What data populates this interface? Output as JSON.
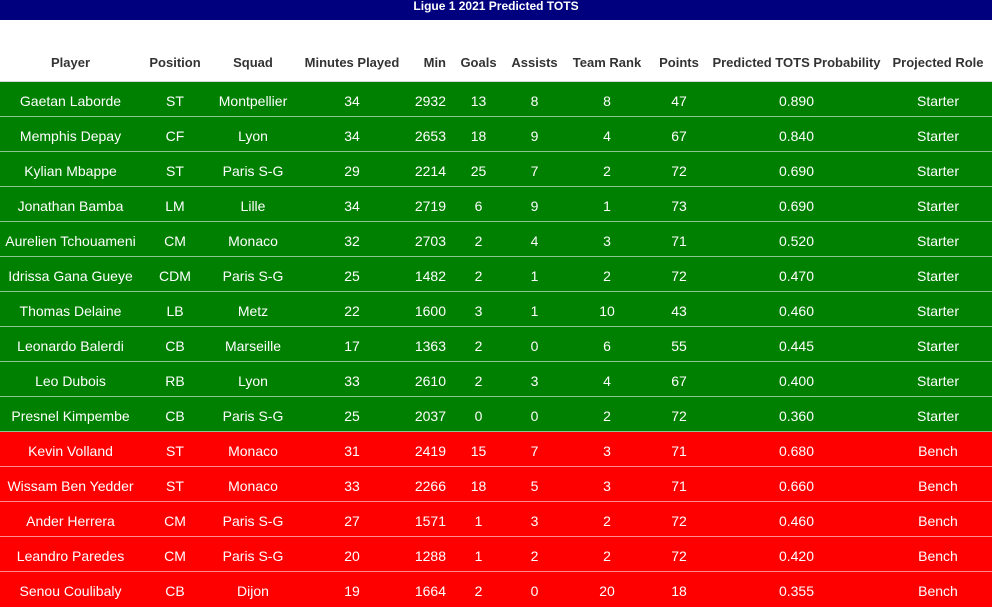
{
  "chart_data": {
    "type": "table",
    "title": "Ligue 1 2021 Predicted TOTS",
    "columns": [
      "Player",
      "Position",
      "Squad",
      "Minutes Played",
      "Min",
      "Goals",
      "Assists",
      "Team Rank",
      "Points",
      "Predicted TOTS Probability",
      "Projected Role"
    ],
    "role_colors": {
      "Starter": "#008000",
      "Bench": "#ff0000"
    },
    "rows": [
      [
        "Gaetan Laborde",
        "ST",
        "Montpellier",
        34,
        2932,
        13,
        8,
        8,
        47,
        "0.890",
        "Starter"
      ],
      [
        "Memphis Depay",
        "CF",
        "Lyon",
        34,
        2653,
        18,
        9,
        4,
        67,
        "0.840",
        "Starter"
      ],
      [
        "Kylian Mbappe",
        "ST",
        "Paris S-G",
        29,
        2214,
        25,
        7,
        2,
        72,
        "0.690",
        "Starter"
      ],
      [
        "Jonathan Bamba",
        "LM",
        "Lille",
        34,
        2719,
        6,
        9,
        1,
        73,
        "0.690",
        "Starter"
      ],
      [
        "Aurelien Tchouameni",
        "CM",
        "Monaco",
        32,
        2703,
        2,
        4,
        3,
        71,
        "0.520",
        "Starter"
      ],
      [
        "Idrissa Gana Gueye",
        "CDM",
        "Paris S-G",
        25,
        1482,
        2,
        1,
        2,
        72,
        "0.470",
        "Starter"
      ],
      [
        "Thomas Delaine",
        "LB",
        "Metz",
        22,
        1600,
        3,
        1,
        10,
        43,
        "0.460",
        "Starter"
      ],
      [
        "Leonardo Balerdi",
        "CB",
        "Marseille",
        17,
        1363,
        2,
        0,
        6,
        55,
        "0.445",
        "Starter"
      ],
      [
        "Leo Dubois",
        "RB",
        "Lyon",
        33,
        2610,
        2,
        3,
        4,
        67,
        "0.400",
        "Starter"
      ],
      [
        "Presnel Kimpembe",
        "CB",
        "Paris S-G",
        25,
        2037,
        0,
        0,
        2,
        72,
        "0.360",
        "Starter"
      ],
      [
        "Kevin Volland",
        "ST",
        "Monaco",
        31,
        2419,
        15,
        7,
        3,
        71,
        "0.680",
        "Bench"
      ],
      [
        "Wissam Ben Yedder",
        "ST",
        "Monaco",
        33,
        2266,
        18,
        5,
        3,
        71,
        "0.660",
        "Bench"
      ],
      [
        "Ander Herrera",
        "CM",
        "Paris S-G",
        27,
        1571,
        1,
        3,
        2,
        72,
        "0.460",
        "Bench"
      ],
      [
        "Leandro Paredes",
        "CM",
        "Paris S-G",
        20,
        1288,
        1,
        2,
        2,
        72,
        "0.420",
        "Bench"
      ],
      [
        "Senou Coulibaly",
        "CB",
        "Dijon",
        19,
        1664,
        2,
        0,
        20,
        18,
        "0.355",
        "Bench"
      ]
    ]
  }
}
